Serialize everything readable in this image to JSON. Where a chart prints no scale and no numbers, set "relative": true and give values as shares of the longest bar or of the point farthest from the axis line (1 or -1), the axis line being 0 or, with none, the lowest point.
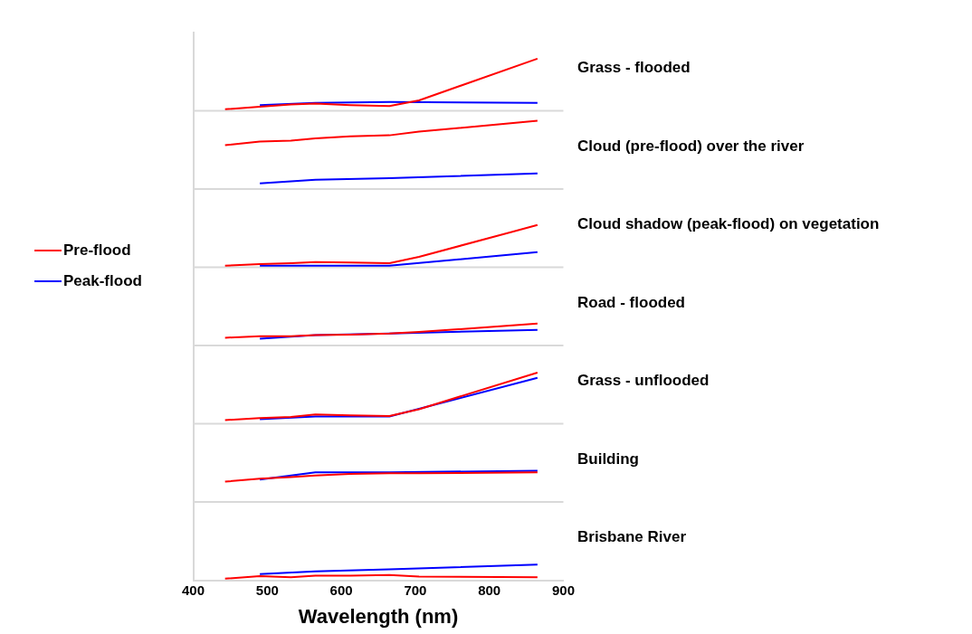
{
  "chart_data": {
    "type": "line",
    "relative": true,
    "legend": "left",
    "xlabel": "Wavelength (nm)",
    "xlim": [
      400,
      900
    ],
    "xticks": [
      400,
      500,
      600,
      700,
      800,
      900
    ],
    "annotations": [
      "Grass - flooded",
      "Cloud (pre-flood) over the river",
      "Cloud shadow (peak-flood) on vegetation",
      "Road - flooded",
      "Grass - unflooded",
      "Building",
      "Brisbane River"
    ],
    "series": [
      {
        "name": "Pre-flood",
        "color": "#ff0000",
        "x": [
          443,
          490,
          532,
          565,
          612,
          665,
          705,
          865
        ],
        "values": [
          0.903,
          0.908,
          0.912,
          0.914,
          0.911,
          0.909,
          0.92,
          1.0
        ]
      },
      {
        "name": "Peak-flood",
        "color": "#0000ff",
        "x": [
          490,
          565,
          665,
          865
        ],
        "values": [
          0.911,
          0.915,
          0.917,
          0.915
        ]
      },
      {
        "color": "#ff0000",
        "x": [
          443,
          490,
          532,
          565,
          612,
          665,
          705,
          865
        ],
        "values": [
          0.834,
          0.841,
          0.843,
          0.847,
          0.851,
          0.853,
          0.86,
          0.881
        ]
      },
      {
        "color": "#0000ff",
        "x": [
          490,
          565,
          665,
          865
        ],
        "values": [
          0.761,
          0.768,
          0.771,
          0.78
        ]
      },
      {
        "color": "#ff0000",
        "x": [
          443,
          490,
          532,
          565,
          612,
          665,
          705,
          865
        ],
        "values": [
          0.603,
          0.606,
          0.608,
          0.61,
          0.609,
          0.608,
          0.62,
          0.681
        ]
      },
      {
        "color": "#0000ff",
        "x": [
          490,
          565,
          665,
          865
        ],
        "values": [
          0.603,
          0.603,
          0.603,
          0.629
        ]
      },
      {
        "color": "#ff0000",
        "x": [
          443,
          490,
          532,
          565,
          612,
          665,
          705,
          865
        ],
        "values": [
          0.465,
          0.468,
          0.468,
          0.47,
          0.471,
          0.473,
          0.476,
          0.492
        ]
      },
      {
        "color": "#0000ff",
        "x": [
          490,
          565,
          665,
          865
        ],
        "values": [
          0.463,
          0.47,
          0.473,
          0.48
        ]
      },
      {
        "color": "#ff0000",
        "x": [
          443,
          490,
          532,
          565,
          612,
          665,
          705,
          865
        ],
        "values": [
          0.307,
          0.311,
          0.313,
          0.318,
          0.316,
          0.315,
          0.328,
          0.398
        ]
      },
      {
        "color": "#0000ff",
        "x": [
          490,
          565,
          665,
          865
        ],
        "values": [
          0.309,
          0.314,
          0.314,
          0.388
        ]
      },
      {
        "color": "#ff0000",
        "x": [
          443,
          490,
          532,
          565,
          612,
          665,
          705,
          865
        ],
        "values": [
          0.189,
          0.195,
          0.198,
          0.201,
          0.204,
          0.205,
          0.205,
          0.207
        ]
      },
      {
        "color": "#0000ff",
        "x": [
          490,
          565,
          665,
          865
        ],
        "values": [
          0.193,
          0.207,
          0.207,
          0.21
        ]
      },
      {
        "color": "#ff0000",
        "x": [
          443,
          490,
          532,
          565,
          612,
          665,
          705,
          865
        ],
        "values": [
          0.003,
          0.008,
          0.006,
          0.009,
          0.009,
          0.01,
          0.007,
          0.006
        ]
      },
      {
        "color": "#0000ff",
        "x": [
          490,
          565,
          665,
          865
        ],
        "values": [
          0.012,
          0.017,
          0.021,
          0.03
        ]
      }
    ]
  }
}
